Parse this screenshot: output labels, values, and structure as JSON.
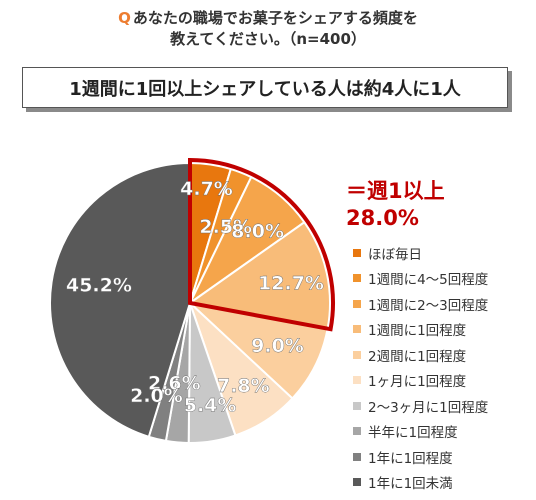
{
  "question": {
    "prefix": "Q",
    "line1": "あなたの職場でお菓子をシェアする頻度を",
    "line2": "教えてください。（n=400）"
  },
  "headline": "1週間に1回以上シェアしている人は約4人に1人",
  "callout": {
    "line1": "＝週1以上",
    "line2": "28.0%",
    "color": "#C00000"
  },
  "chart_data": {
    "type": "pie",
    "unit": "%",
    "start": "12 o'clock, clockwise",
    "slices": [
      {
        "label": "ほぼ毎日",
        "value": 4.7,
        "display": "4.7%",
        "color": "#E8770E"
      },
      {
        "label": "1週間に4～5回程度",
        "value": 2.5,
        "display": "2.5%",
        "color": "#F0922C"
      },
      {
        "label": "1週間に2～3回程度",
        "value": 8.0,
        "display": "8.0%",
        "color": "#F5A54B"
      },
      {
        "label": "1週間に1回程度",
        "value": 12.7,
        "display": "12.7%",
        "color": "#F8BC79"
      },
      {
        "label": "2週間に1回程度",
        "value": 9.0,
        "display": "9.0%",
        "color": "#FBCF9E"
      },
      {
        "label": "1ヶ月に1回程度",
        "value": 7.8,
        "display": "7.8%",
        "color": "#FCE0C3"
      },
      {
        "label": "2～3ヶ月に1回程度",
        "value": 5.4,
        "display": "5.4%",
        "color": "#C8C8C8"
      },
      {
        "label": "半年に1回程度",
        "value": 2.6,
        "display": "2.6%",
        "color": "#A6A6A6"
      },
      {
        "label": "1年に1回程度",
        "value": 2.0,
        "display": "2.0%",
        "color": "#808080"
      },
      {
        "label": "1年に1回未満",
        "value": 45.2,
        "display": "45.2%",
        "color": "#595959"
      }
    ],
    "highlight": {
      "slices": [
        0,
        1,
        2,
        3
      ],
      "total": "28.0%",
      "border_color": "#C00000"
    }
  }
}
